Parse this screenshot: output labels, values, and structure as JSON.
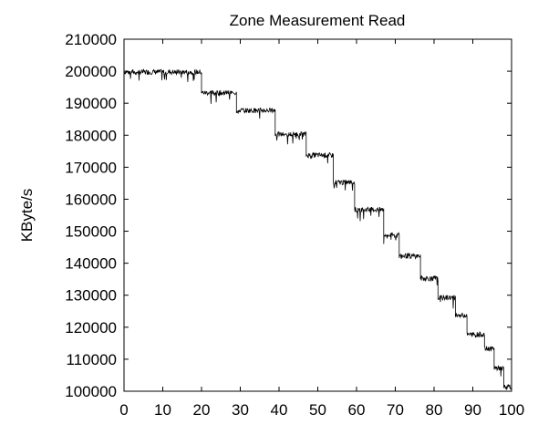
{
  "chart_data": {
    "type": "line",
    "title": "Zone Measurement Read",
    "xlabel": "",
    "ylabel": "KByte/s",
    "xlim": [
      0,
      100
    ],
    "ylim": [
      100000,
      210000
    ],
    "xticks": [
      0,
      10,
      20,
      30,
      40,
      50,
      60,
      70,
      80,
      90,
      100
    ],
    "yticks": [
      100000,
      110000,
      120000,
      130000,
      140000,
      150000,
      160000,
      170000,
      180000,
      190000,
      200000,
      210000
    ],
    "grid": false,
    "legend": "none",
    "line_color": "#000000",
    "series": [
      {
        "zones": [
          {
            "x_start": 0,
            "x_end": 20,
            "value": 200000
          },
          {
            "x_start": 20,
            "x_end": 29,
            "value": 193500
          },
          {
            "x_start": 29,
            "x_end": 39,
            "value": 188000
          },
          {
            "x_start": 39,
            "x_end": 47,
            "value": 180500
          },
          {
            "x_start": 47,
            "x_end": 54,
            "value": 174000
          },
          {
            "x_start": 54,
            "x_end": 59.5,
            "value": 165500
          },
          {
            "x_start": 59.5,
            "x_end": 67,
            "value": 157000
          },
          {
            "x_start": 67,
            "x_end": 71,
            "value": 149000
          },
          {
            "x_start": 71,
            "x_end": 76.5,
            "value": 142500
          },
          {
            "x_start": 76.5,
            "x_end": 81,
            "value": 135500
          },
          {
            "x_start": 81,
            "x_end": 85.5,
            "value": 129500
          },
          {
            "x_start": 85.5,
            "x_end": 88.5,
            "value": 124000
          },
          {
            "x_start": 88.5,
            "x_end": 93,
            "value": 118000
          },
          {
            "x_start": 93,
            "x_end": 95.5,
            "value": 113500
          },
          {
            "x_start": 95.5,
            "x_end": 98,
            "value": 107500
          },
          {
            "x_start": 98,
            "x_end": 100,
            "value": 101500
          }
        ]
      }
    ]
  }
}
